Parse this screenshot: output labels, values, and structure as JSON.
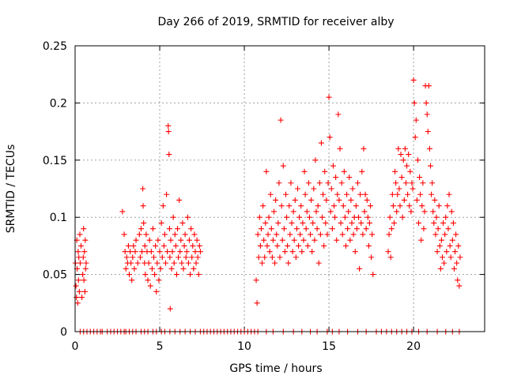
{
  "chart_data": {
    "type": "scatter",
    "title": "Day 266 of 2019, SRMTID for receiver alby",
    "xlabel": "GPS time / hours",
    "ylabel": "SRMTID / TECUs",
    "xlim": [
      0,
      24.2
    ],
    "ylim": [
      0,
      0.25
    ],
    "xticks": [
      0,
      5,
      10,
      15,
      20
    ],
    "xtick_labels": [
      "0",
      "5",
      "10",
      "15",
      "20"
    ],
    "yticks": [
      0,
      0.05,
      0.1,
      0.15,
      0.2,
      0.25
    ],
    "ytick_labels": [
      "0",
      "0.05",
      "0.1",
      "0.15",
      "0.2",
      "0.25"
    ],
    "grid": true,
    "marker": "+",
    "series": [
      {
        "name": "SRMTID",
        "color": "#ff0000",
        "x": [
          0.02,
          0.05,
          0.08,
          0.1,
          0.12,
          0.15,
          0.18,
          0.2,
          0.22,
          0.25,
          0.28,
          0.3,
          0.35,
          0.4,
          0.45,
          0.48,
          0.5,
          0.52,
          0.55,
          0.58,
          0.6,
          0.62,
          0.65,
          2.8,
          2.9,
          2.95,
          3.0,
          3.05,
          3.1,
          3.15,
          3.2,
          3.25,
          3.3,
          3.35,
          3.4,
          3.45,
          3.5,
          3.55,
          3.6,
          3.7,
          3.8,
          3.85,
          3.9,
          3.95,
          4.0,
          4.02,
          4.05,
          4.1,
          4.12,
          4.15,
          4.2,
          4.25,
          4.3,
          4.35,
          4.4,
          4.45,
          4.5,
          4.55,
          4.6,
          4.65,
          4.7,
          4.75,
          4.8,
          4.85,
          4.9,
          4.95,
          5.0,
          5.05,
          5.1,
          5.15,
          5.2,
          5.25,
          5.3,
          5.35,
          5.4,
          5.45,
          5.5,
          5.52,
          5.55,
          5.58,
          5.6,
          5.62,
          5.65,
          5.7,
          5.75,
          5.8,
          5.85,
          5.9,
          5.95,
          6.0,
          6.05,
          6.1,
          6.15,
          6.2,
          6.25,
          6.3,
          6.35,
          6.4,
          6.45,
          6.5,
          6.55,
          6.6,
          6.65,
          6.7,
          6.75,
          6.8,
          6.85,
          6.9,
          6.95,
          7.0,
          7.05,
          7.1,
          7.15,
          7.2,
          7.25,
          7.3,
          7.35,
          7.4,
          10.7,
          10.75,
          10.8,
          10.85,
          10.9,
          10.95,
          11.0,
          11.05,
          11.1,
          11.15,
          11.2,
          11.25,
          11.3,
          11.35,
          11.4,
          11.45,
          11.5,
          11.55,
          11.6,
          11.65,
          11.7,
          11.75,
          11.8,
          11.85,
          11.9,
          11.95,
          12.0,
          12.05,
          12.1,
          12.15,
          12.2,
          12.25,
          12.3,
          12.35,
          12.4,
          12.45,
          12.5,
          12.55,
          12.6,
          12.65,
          12.7,
          12.75,
          12.8,
          12.85,
          12.9,
          12.95,
          13.0,
          13.05,
          13.1,
          13.15,
          13.2,
          13.25,
          13.3,
          13.35,
          13.4,
          13.45,
          13.5,
          13.55,
          13.6,
          13.65,
          13.7,
          13.75,
          13.8,
          13.85,
          13.9,
          13.95,
          14.0,
          14.05,
          14.1,
          14.15,
          14.2,
          14.25,
          14.3,
          14.35,
          14.4,
          14.45,
          14.5,
          14.55,
          14.6,
          14.65,
          14.7,
          14.75,
          14.8,
          14.85,
          14.9,
          14.95,
          15.0,
          15.05,
          15.1,
          15.15,
          15.2,
          15.25,
          15.3,
          15.35,
          15.4,
          15.45,
          15.5,
          15.55,
          15.6,
          15.65,
          15.7,
          15.75,
          15.8,
          15.85,
          15.9,
          15.95,
          16.0,
          16.05,
          16.1,
          16.15,
          16.2,
          16.25,
          16.3,
          16.35,
          16.4,
          16.45,
          16.5,
          16.55,
          16.6,
          16.65,
          16.7,
          16.75,
          16.8,
          16.85,
          16.9,
          16.95,
          17.0,
          17.05,
          17.1,
          17.15,
          17.2,
          17.25,
          17.3,
          17.35,
          17.4,
          17.45,
          17.5,
          17.55,
          17.6,
          18.5,
          18.55,
          18.6,
          18.65,
          18.7,
          18.75,
          18.8,
          18.85,
          18.9,
          18.95,
          19.0,
          19.05,
          19.1,
          19.15,
          19.2,
          19.25,
          19.3,
          19.35,
          19.4,
          19.45,
          19.5,
          19.55,
          19.6,
          19.65,
          19.7,
          19.75,
          19.8,
          19.85,
          19.9,
          19.95,
          20.0,
          20.05,
          20.1,
          20.15,
          20.2,
          20.25,
          20.3,
          20.35,
          20.4,
          20.45,
          20.5,
          20.55,
          20.6,
          20.65,
          20.7,
          20.75,
          20.8,
          20.85,
          20.9,
          20.95,
          21.0,
          21.05,
          21.1,
          21.15,
          21.2,
          21.25,
          21.3,
          21.35,
          21.4,
          21.45,
          21.5,
          21.55,
          21.6,
          21.65,
          21.7,
          21.75,
          21.8,
          21.85,
          21.9,
          21.95,
          22.0,
          22.05,
          22.1,
          22.15,
          22.2,
          22.25,
          22.3,
          22.35,
          22.4,
          22.45,
          22.5,
          22.55,
          22.6,
          22.65,
          22.7,
          22.75
        ],
        "y": [
          0.06,
          0.04,
          0.03,
          0.08,
          0.055,
          0.025,
          0.07,
          0.045,
          0.065,
          0.035,
          0.085,
          0.06,
          0.075,
          0.03,
          0.05,
          0.065,
          0.09,
          0.045,
          0.07,
          0.035,
          0.08,
          0.055,
          0.06,
          0.105,
          0.085,
          0.07,
          0.055,
          0.065,
          0.06,
          0.075,
          0.05,
          0.07,
          0.06,
          0.045,
          0.065,
          0.075,
          0.055,
          0.07,
          0.08,
          0.06,
          0.085,
          0.065,
          0.09,
          0.07,
          0.125,
          0.11,
          0.095,
          0.06,
          0.075,
          0.05,
          0.085,
          0.07,
          0.045,
          0.06,
          0.08,
          0.04,
          0.07,
          0.055,
          0.09,
          0.065,
          0.05,
          0.075,
          0.035,
          0.06,
          0.08,
          0.045,
          0.07,
          0.055,
          0.095,
          0.065,
          0.11,
          0.075,
          0.085,
          0.06,
          0.12,
          0.07,
          0.18,
          0.175,
          0.155,
          0.09,
          0.065,
          0.02,
          0.08,
          0.055,
          0.07,
          0.1,
          0.06,
          0.085,
          0.075,
          0.05,
          0.09,
          0.065,
          0.115,
          0.07,
          0.08,
          0.06,
          0.095,
          0.055,
          0.075,
          0.085,
          0.065,
          0.07,
          0.1,
          0.06,
          0.08,
          0.05,
          0.09,
          0.065,
          0.075,
          0.055,
          0.085,
          0.07,
          0.06,
          0.08,
          0.065,
          0.05,
          0.075,
          0.07,
          0.045,
          0.025,
          0.085,
          0.065,
          0.1,
          0.075,
          0.09,
          0.06,
          0.11,
          0.08,
          0.065,
          0.095,
          0.14,
          0.075,
          0.085,
          0.1,
          0.07,
          0.12,
          0.09,
          0.065,
          0.08,
          0.105,
          0.06,
          0.115,
          0.085,
          0.075,
          0.095,
          0.13,
          0.065,
          0.185,
          0.11,
          0.08,
          0.145,
          0.09,
          0.07,
          0.12,
          0.1,
          0.075,
          0.06,
          0.11,
          0.085,
          0.13,
          0.095,
          0.07,
          0.105,
          0.08,
          0.115,
          0.065,
          0.09,
          0.125,
          0.075,
          0.1,
          0.085,
          0.11,
          0.07,
          0.095,
          0.08,
          0.14,
          0.12,
          0.09,
          0.105,
          0.075,
          0.13,
          0.1,
          0.085,
          0.115,
          0.07,
          0.095,
          0.125,
          0.08,
          0.15,
          0.105,
          0.09,
          0.11,
          0.06,
          0.13,
          0.085,
          0.165,
          0.1,
          0.12,
          0.075,
          0.14,
          0.095,
          0.115,
          0.085,
          0.13,
          0.205,
          0.17,
          0.105,
          0.125,
          0.09,
          0.145,
          0.11,
          0.1,
          0.135,
          0.08,
          0.12,
          0.19,
          0.115,
          0.16,
          0.095,
          0.13,
          0.085,
          0.11,
          0.14,
          0.1,
          0.075,
          0.12,
          0.09,
          0.105,
          0.135,
          0.08,
          0.115,
          0.095,
          0.125,
          0.085,
          0.1,
          0.07,
          0.11,
          0.09,
          0.13,
          0.1,
          0.055,
          0.12,
          0.095,
          0.14,
          0.085,
          0.16,
          0.105,
          0.12,
          0.09,
          0.115,
          0.1,
          0.075,
          0.095,
          0.11,
          0.065,
          0.085,
          0.05,
          0.07,
          0.085,
          0.1,
          0.065,
          0.09,
          0.12,
          0.11,
          0.095,
          0.14,
          0.13,
          0.105,
          0.12,
          0.16,
          0.125,
          0.11,
          0.155,
          0.135,
          0.1,
          0.15,
          0.115,
          0.16,
          0.13,
          0.145,
          0.12,
          0.155,
          0.11,
          0.14,
          0.105,
          0.13,
          0.125,
          0.22,
          0.2,
          0.17,
          0.185,
          0.115,
          0.15,
          0.095,
          0.135,
          0.12,
          0.08,
          0.11,
          0.13,
          0.09,
          0.105,
          0.215,
          0.2,
          0.19,
          0.175,
          0.215,
          0.16,
          0.145,
          0.12,
          0.13,
          0.105,
          0.095,
          0.115,
          0.085,
          0.1,
          0.07,
          0.09,
          0.11,
          0.075,
          0.055,
          0.08,
          0.065,
          0.095,
          0.06,
          0.085,
          0.1,
          0.07,
          0.11,
          0.09,
          0.12,
          0.075,
          0.065,
          0.105,
          0.08,
          0.095,
          0.055,
          0.07,
          0.085,
          0.06,
          0.045,
          0.075,
          0.04,
          0.065
        ],
        "zero_marks_x": [
          0.3,
          0.5,
          0.7,
          0.9,
          1.1,
          1.3,
          1.5,
          1.6,
          1.9,
          2.1,
          2.3,
          2.5,
          2.7,
          2.9,
          3.0,
          3.2,
          3.4,
          3.6,
          3.9,
          4.1,
          4.3,
          4.6,
          4.8,
          5.1,
          5.3,
          5.6,
          5.9,
          6.2,
          6.5,
          6.8,
          7.1,
          7.4,
          7.6,
          7.8,
          8.0,
          8.2,
          8.4,
          8.6,
          8.8,
          9.0,
          9.2,
          9.4,
          9.6,
          9.8,
          10.0,
          10.2,
          10.4,
          10.6,
          10.8,
          11.3,
          11.7,
          12.3,
          12.9,
          13.4,
          13.9,
          14.3,
          14.9,
          15.2,
          15.6,
          16.1,
          16.7,
          17.2,
          17.8,
          18.1,
          18.4,
          18.7,
          19.0,
          19.3,
          19.6,
          19.9,
          20.3,
          20.8,
          21.4,
          21.9,
          22.3,
          22.7
        ]
      }
    ]
  }
}
